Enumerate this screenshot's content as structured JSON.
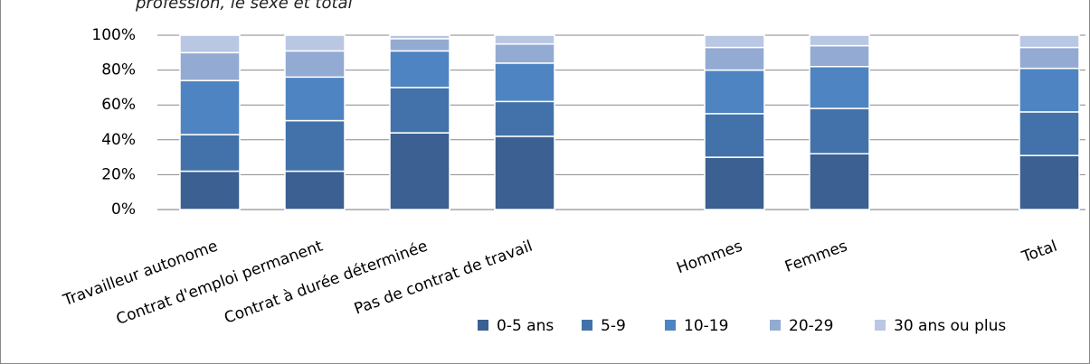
{
  "chart_data": {
    "type": "bar",
    "stacked": true,
    "title": "profession, le sexe et total",
    "categories": [
      "Travailleur autonome",
      "Contrat d'emploi permanent",
      "Contrat à durée déterminée",
      "Pas de contrat de travail",
      null,
      "Hommes",
      "Femmes",
      null,
      "Total"
    ],
    "series": [
      {
        "name": "0-5 ans",
        "color": "#3b6091",
        "values": [
          22,
          22,
          44,
          42,
          null,
          30,
          32,
          null,
          31
        ]
      },
      {
        "name": "5-9",
        "color": "#4372aa",
        "values": [
          21,
          29,
          26,
          20,
          null,
          25,
          26,
          null,
          25
        ]
      },
      {
        "name": "10-19",
        "color": "#4f84c2",
        "values": [
          31,
          25,
          21,
          22,
          null,
          25,
          24,
          null,
          25
        ]
      },
      {
        "name": "20-29",
        "color": "#93aad2",
        "values": [
          16,
          15,
          7,
          11,
          null,
          13,
          12,
          null,
          12
        ]
      },
      {
        "name": "30 ans ou plus",
        "color": "#b9c7e3",
        "values": [
          10,
          9,
          2,
          5,
          null,
          7,
          6,
          null,
          7
        ]
      }
    ],
    "ylim": [
      0,
      100
    ],
    "yticks": [
      {
        "value": 0,
        "label": "0%"
      },
      {
        "value": 20,
        "label": "20%"
      },
      {
        "value": 40,
        "label": "40%"
      },
      {
        "value": 60,
        "label": "60%"
      },
      {
        "value": 80,
        "label": "80%"
      },
      {
        "value": 100,
        "label": "100%"
      }
    ],
    "grid": true,
    "legend": "bottom-right"
  }
}
